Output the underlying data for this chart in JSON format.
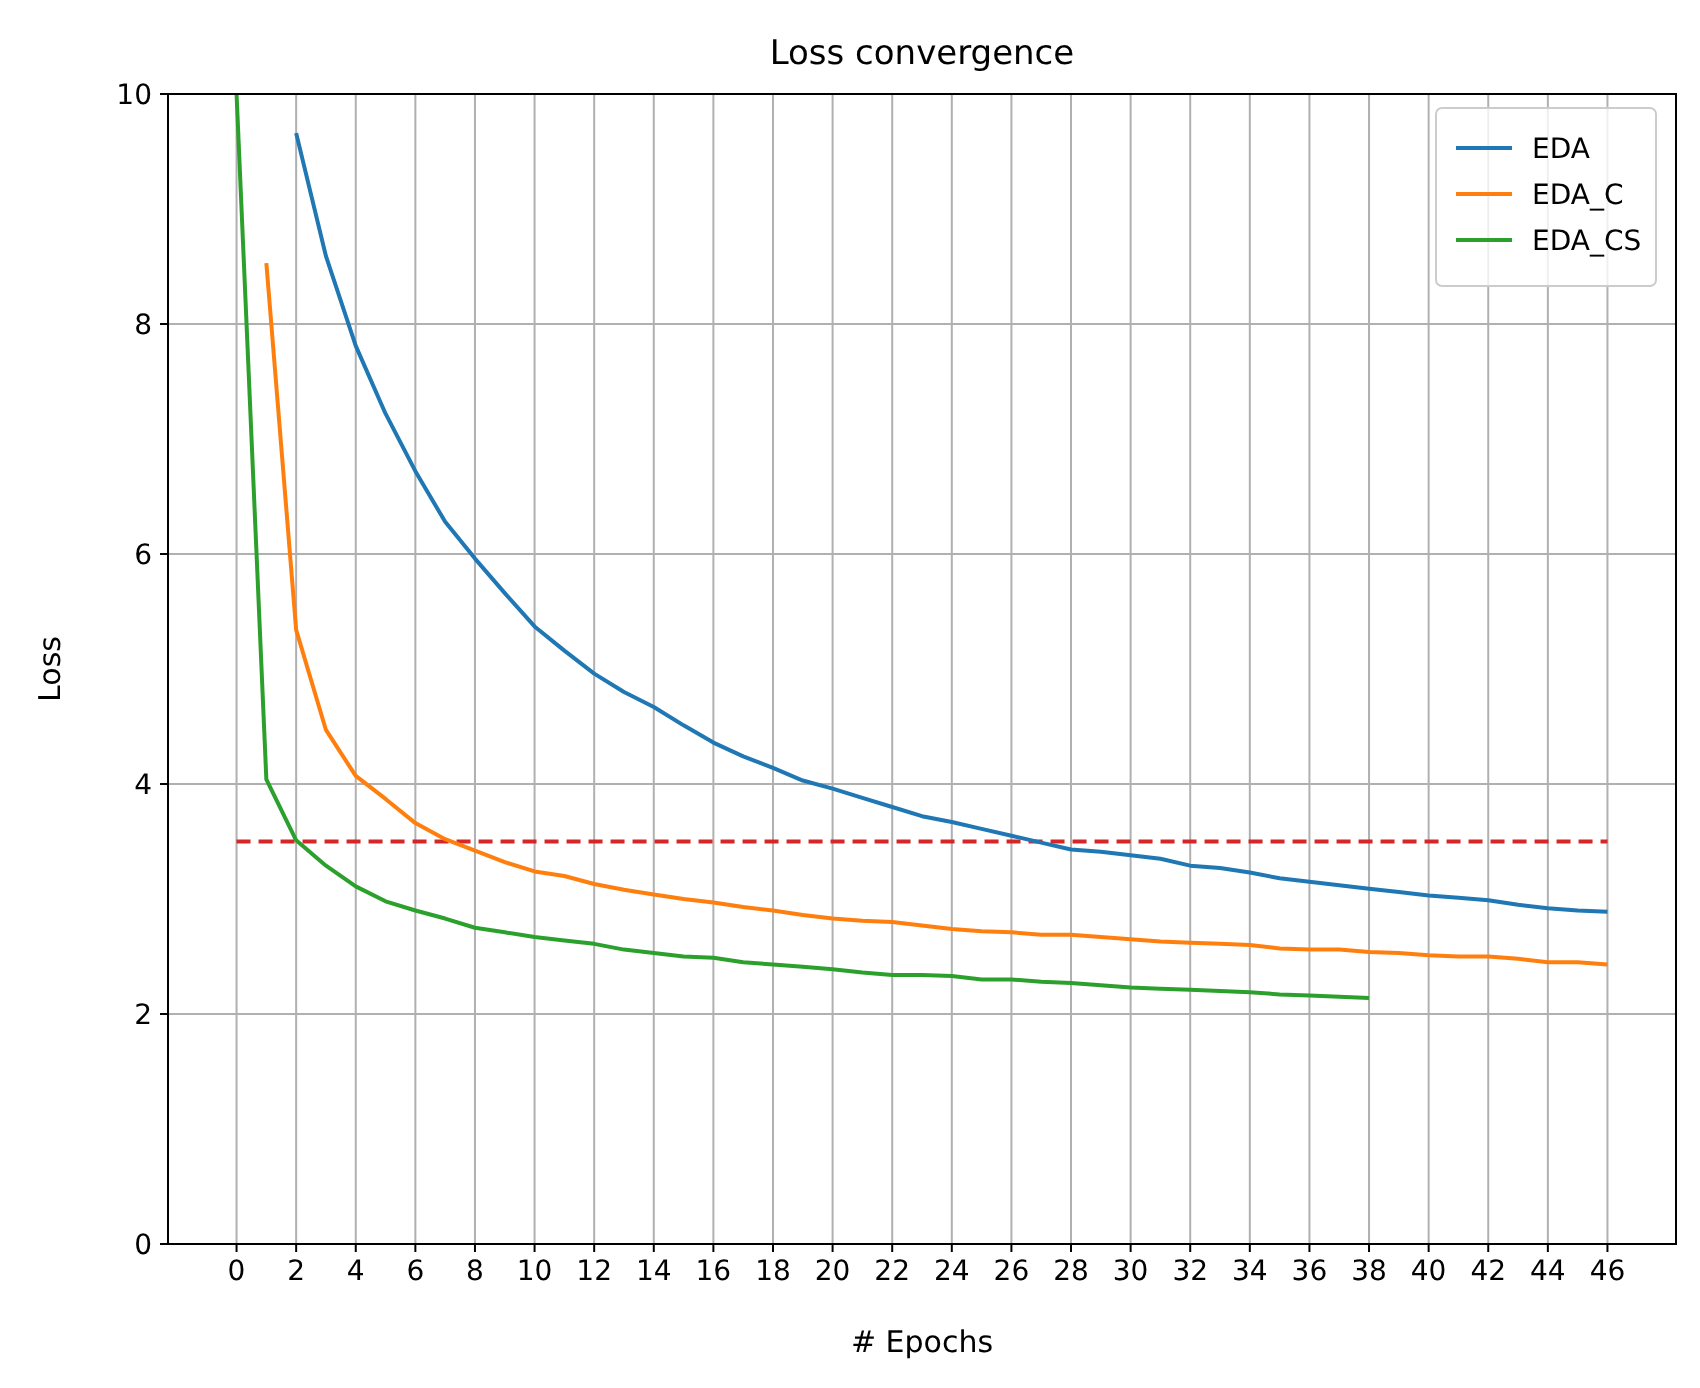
{
  "chart_data": {
    "type": "line",
    "title": "Loss convergence",
    "xlabel": "# Epochs",
    "ylabel": "Loss",
    "x": [
      0,
      1,
      2,
      3,
      4,
      5,
      6,
      7,
      8,
      9,
      10,
      11,
      12,
      13,
      14,
      15,
      16,
      17,
      18,
      19,
      20,
      21,
      22,
      23,
      24,
      25,
      26,
      27,
      28,
      29,
      30,
      31,
      32,
      33,
      34,
      35,
      36,
      37,
      38,
      39,
      40,
      41,
      42,
      43,
      44,
      45,
      46
    ],
    "series": [
      {
        "name": "EDA",
        "color": "#1f77b4",
        "values": [
          null,
          null,
          9.66,
          8.59,
          7.81,
          7.22,
          6.72,
          6.28,
          5.96,
          5.66,
          5.37,
          5.16,
          4.96,
          4.8,
          4.67,
          4.51,
          4.36,
          4.24,
          4.14,
          4.03,
          3.96,
          3.88,
          3.8,
          3.72,
          3.67,
          3.61,
          3.55,
          3.49,
          3.43,
          3.41,
          3.38,
          3.35,
          3.29,
          3.27,
          3.23,
          3.18,
          3.15,
          3.12,
          3.09,
          3.06,
          3.03,
          3.01,
          2.99,
          2.95,
          2.92,
          2.9,
          2.89
        ]
      },
      {
        "name": "EDA_C",
        "color": "#ff7f0e",
        "values": [
          null,
          8.53,
          5.34,
          4.47,
          4.07,
          3.87,
          3.66,
          3.52,
          3.42,
          3.32,
          3.24,
          3.2,
          3.13,
          3.08,
          3.04,
          3.0,
          2.97,
          2.93,
          2.9,
          2.86,
          2.83,
          2.81,
          2.8,
          2.77,
          2.74,
          2.72,
          2.71,
          2.69,
          2.69,
          2.67,
          2.65,
          2.63,
          2.62,
          2.61,
          2.6,
          2.57,
          2.56,
          2.56,
          2.54,
          2.53,
          2.51,
          2.5,
          2.5,
          2.48,
          2.45,
          2.45,
          2.43
        ]
      },
      {
        "name": "EDA_CS",
        "color": "#2ca02c",
        "values": [
          10,
          4.04,
          3.51,
          3.29,
          3.11,
          2.98,
          2.9,
          2.83,
          2.75,
          2.71,
          2.67,
          2.64,
          2.61,
          2.56,
          2.53,
          2.5,
          2.49,
          2.45,
          2.43,
          2.41,
          2.39,
          2.36,
          2.34,
          2.34,
          2.33,
          2.3,
          2.3,
          2.28,
          2.27,
          2.25,
          2.23,
          2.22,
          2.21,
          2.2,
          2.19,
          2.17,
          2.16,
          2.15,
          2.14,
          null,
          null,
          null,
          null,
          null,
          null,
          null,
          null
        ]
      }
    ],
    "ref_lines": [
      {
        "axis": "y",
        "value": 3.5,
        "color": "#d62728",
        "line_style": "dashed"
      }
    ],
    "xlim": [
      -2.3,
      48.3
    ],
    "xticks": [
      0,
      2,
      4,
      6,
      8,
      10,
      12,
      14,
      16,
      18,
      20,
      22,
      24,
      26,
      28,
      30,
      32,
      34,
      36,
      38,
      40,
      42,
      44,
      46
    ],
    "ylim": [
      0,
      10
    ],
    "yticks": [
      0,
      2,
      4,
      6,
      8,
      10
    ],
    "grid": true,
    "legend": "top right",
    "line_style": "solid",
    "marker": "none"
  }
}
